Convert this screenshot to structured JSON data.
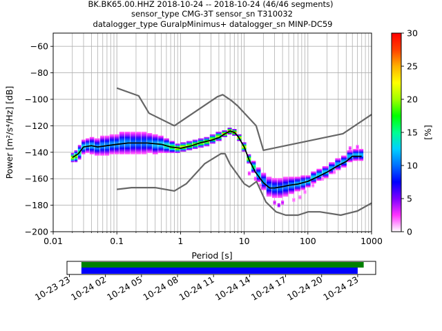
{
  "chart_data": {
    "type": "heatmap",
    "title_lines": [
      "BK.BK65.00.HHZ   2018-10-24 -- 2018-10-24  (46/46 segments)",
      "sensor_type CMG-3T sensor_sn T310032",
      "datalogger_type GuralpMinimus+ datalogger_sn MINP-DC59"
    ],
    "xlabel": "Period [s]",
    "ylabel": "Power [m²/s⁴/Hz] [dB]",
    "xscale": "log",
    "xlim": [
      0.01,
      1000
    ],
    "ylim": [
      -200,
      -50
    ],
    "xticks": [
      {
        "value": 0.01,
        "label": "0.01"
      },
      {
        "value": 0.1,
        "label": "0.1"
      },
      {
        "value": 1,
        "label": "1"
      },
      {
        "value": 10,
        "label": "10"
      },
      {
        "value": 100,
        "label": "100"
      },
      {
        "value": 1000,
        "label": "1000"
      }
    ],
    "yticks": [
      -60,
      -80,
      -100,
      -120,
      -140,
      -160,
      -180,
      -200
    ],
    "grid": true,
    "colorbar": {
      "label": "[%]",
      "range": [
        0,
        30
      ],
      "ticks": [
        0,
        5,
        10,
        15,
        20,
        25,
        30
      ],
      "colormap": [
        "#ffffff",
        "#ff33ff",
        "#7d00ff",
        "#0000ff",
        "#0070ff",
        "#00d0ff",
        "#00ff90",
        "#00ff00",
        "#a0ff00",
        "#ffff00",
        "#ffb000",
        "#ff4000",
        "#ff0000"
      ]
    },
    "mode_line": {
      "name": "mode",
      "color": "#000000",
      "x": [
        0.02,
        0.025,
        0.03,
        0.04,
        0.05,
        0.07,
        0.1,
        0.15,
        0.2,
        0.3,
        0.5,
        0.7,
        1.0,
        1.5,
        2,
        3,
        4,
        5,
        6,
        7,
        8,
        10,
        12,
        15,
        20,
        25,
        30,
        40,
        50,
        70,
        100,
        150,
        200,
        300,
        400,
        500,
        700
      ],
      "y": [
        -144,
        -141,
        -136,
        -135,
        -136,
        -135,
        -134,
        -133,
        -133,
        -133,
        -134,
        -136,
        -137,
        -135,
        -133,
        -131,
        -129,
        -126,
        -124,
        -125,
        -128,
        -136,
        -146,
        -155,
        -163,
        -167,
        -167,
        -166,
        -165,
        -164,
        -162,
        -158,
        -155,
        -150,
        -147,
        -143,
        -143
      ]
    },
    "reference_lines": [
      {
        "name": "high noise model",
        "color": "#666666",
        "x": [
          0.1,
          0.22,
          0.32,
          0.8,
          3.8,
          4.6,
          6.3,
          7.9,
          15.4,
          20,
          354.8,
          1000
        ],
        "y": [
          -91.5,
          -97.4,
          -110.5,
          -120,
          -98,
          -96.5,
          -101,
          -105,
          -120,
          -138.5,
          -126,
          -111.5
        ]
      },
      {
        "name": "low noise model",
        "color": "#666666",
        "x": [
          0.1,
          0.17,
          0.4,
          0.8,
          1.24,
          2.4,
          4.3,
          5,
          6,
          10,
          12,
          15.6,
          21.9,
          31.6,
          45,
          70,
          101,
          154,
          328,
          600,
          1000
        ],
        "y": [
          -168,
          -166.7,
          -166.7,
          -169.2,
          -163.7,
          -148.6,
          -141.1,
          -141.1,
          -149,
          -163.8,
          -166.2,
          -162.1,
          -177.5,
          -185,
          -187.5,
          -187.5,
          -185,
          -185,
          -187.5,
          -184.4,
          -178.4
        ]
      }
    ],
    "density_columns": [
      {
        "x": 0.02,
        "y": -144,
        "spread": 3,
        "pct": 22
      },
      {
        "x": 0.023,
        "y": -143,
        "spread": 4,
        "pct": 20
      },
      {
        "x": 0.026,
        "y": -140,
        "spread": 5,
        "pct": 16
      },
      {
        "x": 0.03,
        "y": -136,
        "spread": 5,
        "pct": 13
      },
      {
        "x": 0.035,
        "y": -135,
        "spread": 5,
        "pct": 12
      },
      {
        "x": 0.04,
        "y": -135,
        "spread": 6,
        "pct": 12
      },
      {
        "x": 0.05,
        "y": -136,
        "spread": 6,
        "pct": 11
      },
      {
        "x": 0.06,
        "y": -135,
        "spread": 7,
        "pct": 11
      },
      {
        "x": 0.07,
        "y": -135,
        "spread": 7,
        "pct": 11
      },
      {
        "x": 0.085,
        "y": -134,
        "spread": 7,
        "pct": 11
      },
      {
        "x": 0.1,
        "y": -134,
        "spread": 7,
        "pct": 11
      },
      {
        "x": 0.12,
        "y": -133,
        "spread": 8,
        "pct": 11
      },
      {
        "x": 0.15,
        "y": -133,
        "spread": 8,
        "pct": 11
      },
      {
        "x": 0.18,
        "y": -133,
        "spread": 8,
        "pct": 10
      },
      {
        "x": 0.22,
        "y": -133,
        "spread": 8,
        "pct": 10
      },
      {
        "x": 0.27,
        "y": -133,
        "spread": 8,
        "pct": 10
      },
      {
        "x": 0.33,
        "y": -133,
        "spread": 7,
        "pct": 11
      },
      {
        "x": 0.4,
        "y": -134,
        "spread": 7,
        "pct": 12
      },
      {
        "x": 0.5,
        "y": -134,
        "spread": 6,
        "pct": 13
      },
      {
        "x": 0.6,
        "y": -135,
        "spread": 5,
        "pct": 15
      },
      {
        "x": 0.75,
        "y": -136,
        "spread": 4,
        "pct": 18
      },
      {
        "x": 0.9,
        "y": -137,
        "spread": 3,
        "pct": 22
      },
      {
        "x": 1.1,
        "y": -136,
        "spread": 3,
        "pct": 22
      },
      {
        "x": 1.4,
        "y": -135,
        "spread": 3,
        "pct": 20
      },
      {
        "x": 1.7,
        "y": -134,
        "spread": 3,
        "pct": 20
      },
      {
        "x": 2.1,
        "y": -133,
        "spread": 3,
        "pct": 20
      },
      {
        "x": 2.6,
        "y": -132,
        "spread": 3,
        "pct": 20
      },
      {
        "x": 3.2,
        "y": -130,
        "spread": 3,
        "pct": 20
      },
      {
        "x": 4,
        "y": -128,
        "spread": 3,
        "pct": 20
      },
      {
        "x": 5,
        "y": -126,
        "spread": 2,
        "pct": 25
      },
      {
        "x": 6,
        "y": -124,
        "spread": 2,
        "pct": 26
      },
      {
        "x": 7,
        "y": -125,
        "spread": 2,
        "pct": 26
      },
      {
        "x": 8.5,
        "y": -129,
        "spread": 2,
        "pct": 24
      },
      {
        "x": 10,
        "y": -136,
        "spread": 3,
        "pct": 22
      },
      {
        "x": 12,
        "y": -145,
        "spread": 3,
        "pct": 20
      },
      {
        "x": 14,
        "y": -151,
        "spread": 4,
        "pct": 16
      },
      {
        "x": 17,
        "y": -157,
        "spread": 5,
        "pct": 13
      },
      {
        "x": 20,
        "y": -162,
        "spread": 6,
        "pct": 11
      },
      {
        "x": 25,
        "y": -166,
        "spread": 7,
        "pct": 10
      },
      {
        "x": 30,
        "y": -167,
        "spread": 7,
        "pct": 10
      },
      {
        "x": 37,
        "y": -167,
        "spread": 7,
        "pct": 10
      },
      {
        "x": 45,
        "y": -166,
        "spread": 7,
        "pct": 10
      },
      {
        "x": 55,
        "y": -165,
        "spread": 6,
        "pct": 11
      },
      {
        "x": 70,
        "y": -164,
        "spread": 5,
        "pct": 12
      },
      {
        "x": 85,
        "y": -163,
        "spread": 5,
        "pct": 12
      },
      {
        "x": 100,
        "y": -162,
        "spread": 4,
        "pct": 13
      },
      {
        "x": 125,
        "y": -159,
        "spread": 4,
        "pct": 13
      },
      {
        "x": 150,
        "y": -157,
        "spread": 4,
        "pct": 13
      },
      {
        "x": 190,
        "y": -155,
        "spread": 4,
        "pct": 13
      },
      {
        "x": 240,
        "y": -152,
        "spread": 4,
        "pct": 12
      },
      {
        "x": 300,
        "y": -149,
        "spread": 4,
        "pct": 12
      },
      {
        "x": 370,
        "y": -147,
        "spread": 4,
        "pct": 12
      },
      {
        "x": 460,
        "y": -143,
        "spread": 4,
        "pct": 12
      },
      {
        "x": 570,
        "y": -142,
        "spread": 4,
        "pct": 12
      },
      {
        "x": 700,
        "y": -142,
        "spread": 4,
        "pct": 12
      }
    ],
    "outlier_blobs": [
      {
        "x": 12,
        "y": -156,
        "pct": 3
      },
      {
        "x": 15,
        "y": -160,
        "pct": 3
      },
      {
        "x": 18,
        "y": -165,
        "pct": 2
      },
      {
        "x": 30,
        "y": -178,
        "pct": 4
      },
      {
        "x": 35,
        "y": -180,
        "pct": 5
      },
      {
        "x": 40,
        "y": -178,
        "pct": 4
      },
      {
        "x": 60,
        "y": -176,
        "pct": 2
      },
      {
        "x": 75,
        "y": -174,
        "pct": 2
      },
      {
        "x": 90,
        "y": -170,
        "pct": 2
      },
      {
        "x": 120,
        "y": -165,
        "pct": 2
      },
      {
        "x": 170,
        "y": -160,
        "pct": 2
      },
      {
        "x": 260,
        "y": -155,
        "pct": 2
      },
      {
        "x": 460,
        "y": -137,
        "pct": 3
      },
      {
        "x": 600,
        "y": -136,
        "pct": 3
      }
    ]
  },
  "timeline": {
    "ticks": [
      {
        "value": 0,
        "label": "10-23 23"
      },
      {
        "value": 3,
        "label": "10-24 02"
      },
      {
        "value": 6,
        "label": "10-24 05"
      },
      {
        "value": 9,
        "label": "10-24 08"
      },
      {
        "value": 12,
        "label": "10-24 11"
      },
      {
        "value": 15,
        "label": "10-24 14"
      },
      {
        "value": 18,
        "label": "10-24 17"
      },
      {
        "value": 21,
        "label": "10-24 20"
      },
      {
        "value": 24,
        "label": "10-24 23"
      }
    ],
    "range_hours": [
      -0.2,
      25.5
    ],
    "bars": [
      {
        "name": "data",
        "color": "#008000",
        "start_hours": 1.0,
        "end_hours": 24.5
      },
      {
        "name": "psd",
        "color": "#0000ff",
        "start_hours": 1.0,
        "end_hours": 24.0
      }
    ]
  }
}
